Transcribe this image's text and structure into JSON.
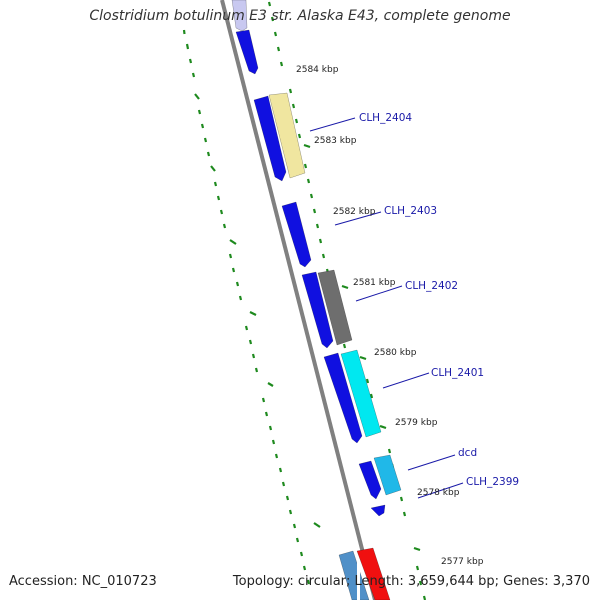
{
  "title": "Clostridium botulinum E3 str. Alaska E43, complete genome",
  "accession_text": "Accession: NC_010723",
  "summary_text": "Topology: circular; Length: 3,659,644 bp; Genes: 3,370",
  "colors": {
    "backbone": "#808080",
    "gc_ticks": "#1e8a1e",
    "cds_forward": "#1010e0",
    "label_line": "#1a1aa8"
  },
  "ticks": [
    "2584 kbp",
    "2583 kbp",
    "2582 kbp",
    "2581 kbp",
    "2580 kbp",
    "2579 kbp",
    "2578 kbp",
    "2577 kbp"
  ],
  "genes": [
    "CLH_2404",
    "CLH_2403",
    "CLH_2402",
    "CLH_2401",
    "dcd",
    "CLH_2399"
  ]
}
